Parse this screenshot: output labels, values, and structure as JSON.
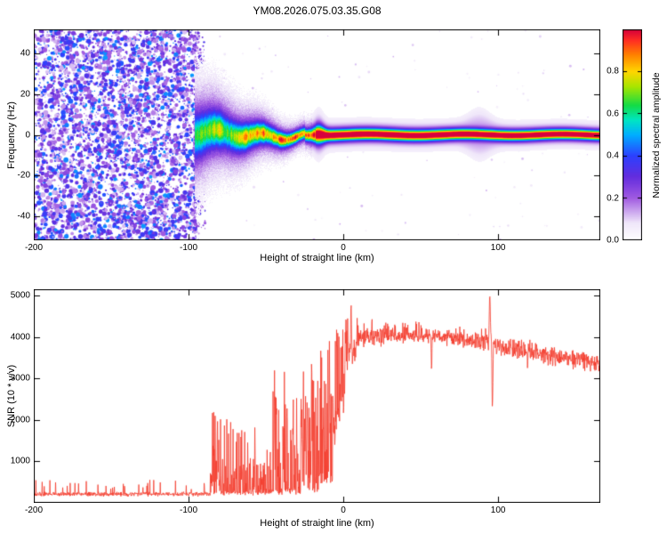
{
  "figure": {
    "title": "YM08.2026.075.03.35.G08",
    "background": "#ffffff"
  },
  "chart_data": [
    {
      "type": "heatmap",
      "panel": "spectrogram",
      "title": "YM08.2026.075.03.35.G08",
      "xlabel": "Height of straight line (km)",
      "ylabel": "Frequency (Hz)",
      "xlim": [
        -200,
        166
      ],
      "ylim": [
        -52,
        52
      ],
      "xticks": [
        -200,
        -100,
        0,
        100
      ],
      "yticks": [
        -40,
        -20,
        0,
        20,
        40
      ],
      "grid": false,
      "colorbar": {
        "label": "Normalized spectral amplitude",
        "ticks": [
          0.0,
          0.2,
          0.4,
          0.6,
          0.8
        ],
        "range": [
          0,
          1
        ],
        "position": "right",
        "colormap_stops": [
          [
            0.0,
            "#ffffff"
          ],
          [
            0.08,
            "#f0e7fa"
          ],
          [
            0.2,
            "#a05ae1"
          ],
          [
            0.3,
            "#642dde"
          ],
          [
            0.4,
            "#2d41ff"
          ],
          [
            0.5,
            "#00afff"
          ],
          [
            0.57,
            "#00e6c3"
          ],
          [
            0.64,
            "#14dc46"
          ],
          [
            0.73,
            "#aae600"
          ],
          [
            0.8,
            "#ffd700"
          ],
          [
            0.88,
            "#ff8200"
          ],
          [
            0.95,
            "#ff2d23"
          ],
          [
            1.0,
            "#d7003c"
          ]
        ]
      },
      "features": {
        "noise_field": {
          "x_range": [
            -200,
            -96
          ],
          "freq_range": [
            -52,
            52
          ],
          "amplitude_range": [
            0.05,
            0.5
          ],
          "description": "dense purple speckle noise filling full frequency range"
        },
        "signal_band": {
          "x_range": [
            -96,
            166
          ],
          "center_frequency_hz": 0,
          "core_amplitude": [
            0.55,
            1.0
          ],
          "width_hz_start": 7,
          "width_hz_end": 1.9,
          "description": "wiggly scattered band narrowing into tight red ridge at 0 Hz with green sheath and purple fringe"
        },
        "fringe_cloud": {
          "x_range": [
            -96,
            -26
          ],
          "description": "scattered purple speckle hugging the band"
        },
        "halo_blob": {
          "x_range": [
            78,
            100
          ],
          "description": "slightly wider faint purple halo around band"
        }
      }
    },
    {
      "type": "line",
      "panel": "snr",
      "xlabel": "Height of straight line (km)",
      "ylabel": "SNR (10 * v/v)",
      "xlim": [
        -200,
        166
      ],
      "ylim": [
        0,
        5150
      ],
      "xticks": [
        -200,
        -100,
        0,
        100
      ],
      "yticks": [
        1000,
        2000,
        3000,
        4000,
        5000
      ],
      "line_color": "#f43b2c",
      "segments": [
        {
          "x0": -200,
          "x1": -86,
          "floor": 210,
          "jitter": 60,
          "p": 0.05,
          "burstLo": 330,
          "burstHi": 560
        },
        {
          "x0": -86,
          "x1": -76,
          "floor": 240,
          "jitter": 80,
          "p": 0.75,
          "burstLo": 400,
          "burstHi": 2320
        },
        {
          "x0": -76,
          "x1": -66,
          "floor": 240,
          "jitter": 80,
          "p": 0.5,
          "burstLo": 350,
          "burstHi": 2150
        },
        {
          "x0": -66,
          "x1": -56,
          "floor": 240,
          "jitter": 80,
          "p": 0.45,
          "burstLo": 320,
          "burstHi": 1850
        },
        {
          "x0": -56,
          "x1": -46,
          "floor": 250,
          "jitter": 90,
          "p": 0.4,
          "burstLo": 320,
          "burstHi": 1350
        },
        {
          "x0": -46,
          "x1": -36,
          "floor": 280,
          "jitter": 110,
          "p": 0.65,
          "burstLo": 500,
          "burstHi": 3250
        },
        {
          "x0": -36,
          "x1": -26,
          "floor": 300,
          "jitter": 120,
          "p": 0.5,
          "burstLo": 450,
          "burstHi": 2750
        },
        {
          "x0": -26,
          "x1": -16,
          "floor": 380,
          "jitter": 160,
          "p": 0.6,
          "burstLo": 600,
          "burstHi": 3450
        },
        {
          "x0": -16,
          "x1": -7,
          "floor": 600,
          "jitter": 260,
          "p": 0.65,
          "burstLo": 900,
          "burstHi": 3900
        },
        {
          "x0": -7,
          "x1": 1,
          "floor": 1500,
          "floor1": 2800,
          "jitter": 500,
          "p": 0.55,
          "burstLo": 2000,
          "burstHi": 4200
        },
        {
          "x0": 1,
          "x1": 9,
          "floor": 3200,
          "floor1": 3800,
          "jitter": 380,
          "p": 0.3,
          "burstLo": 3600,
          "burstHi": 4650
        },
        {
          "x0": 9,
          "x1": 35,
          "floor": 3900,
          "floor1": 4080,
          "jitter": 250,
          "p": 0.12,
          "burstLo": 4100,
          "burstHi": 4430
        },
        {
          "x0": 35,
          "x1": 60,
          "floor": 4060,
          "floor1": 4000,
          "jitter": 220,
          "p": 0.06,
          "burstLo": 4150,
          "burstHi": 4380
        },
        {
          "x0": 60,
          "x1": 93,
          "floor": 4000,
          "floor1": 3860,
          "jitter": 220,
          "p": 0.05,
          "burstLo": 4000,
          "burstHi": 4250
        },
        {
          "x0": 93,
          "x1": 98,
          "floor": 3830,
          "jitter": 260,
          "p": 0,
          "burstLo": 0,
          "burstHi": 0
        },
        {
          "x0": 98,
          "x1": 130,
          "floor": 3800,
          "floor1": 3600,
          "jitter": 250,
          "p": 0.04,
          "burstLo": 3700,
          "burstHi": 3950
        },
        {
          "x0": 130,
          "x1": 166,
          "floor": 3580,
          "floor1": 3350,
          "jitter": 300,
          "p": 0.04,
          "burstLo": 3500,
          "burstHi": 3800
        }
      ],
      "spikes": [
        {
          "x": -44.5,
          "y": 3270,
          "w": 0.5
        },
        {
          "x": -20.5,
          "y": 3460,
          "w": 0.5
        },
        {
          "x": -9,
          "y": 3900,
          "w": 0.5
        },
        {
          "x": 5,
          "y": 4930,
          "w": 0.6
        },
        {
          "x": 57,
          "y": 3060,
          "w": 0.45
        },
        {
          "x": 94.6,
          "y": 5120,
          "w": 0.8
        },
        {
          "x": 96.3,
          "y": 2120,
          "w": 0.6
        },
        {
          "x": 119,
          "y": 3230,
          "w": 0.45
        }
      ]
    }
  ]
}
